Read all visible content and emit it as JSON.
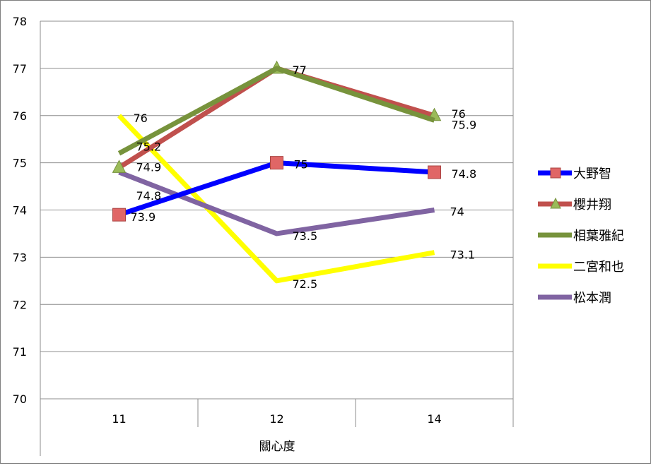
{
  "chart_data": {
    "type": "line",
    "title": "",
    "xlabel": "關心度",
    "ylabel": "",
    "categories": [
      "11",
      "12",
      "14"
    ],
    "ylim": [
      70,
      78
    ],
    "yticks": [
      70,
      71,
      72,
      73,
      74,
      75,
      76,
      77,
      78
    ],
    "grid": true,
    "legend_position": "right",
    "series": [
      {
        "name": "大野智",
        "values": [
          73.9,
          75,
          74.8
        ],
        "labels": [
          "73.9",
          "75",
          "74.8"
        ],
        "color": "#0000ff",
        "marker": "square",
        "marker_color": "#e06666"
      },
      {
        "name": "櫻井翔",
        "values": [
          74.9,
          77,
          76
        ],
        "labels": [
          "74.9",
          "77",
          "76"
        ],
        "color": "#c0504d",
        "marker": "triangle",
        "marker_color": "#9bbb59"
      },
      {
        "name": "相葉雅紀",
        "values": [
          75.2,
          77,
          75.9
        ],
        "labels": [
          "75.2",
          "77",
          "75.9"
        ],
        "color": "#77933c",
        "marker": "none"
      },
      {
        "name": "二宮和也",
        "values": [
          76,
          72.5,
          73.1
        ],
        "labels": [
          "76",
          "72.5",
          "73.1"
        ],
        "color": "#ffff00",
        "marker": "none"
      },
      {
        "name": "松本潤",
        "values": [
          74.8,
          73.5,
          74
        ],
        "labels": [
          "74.8",
          "73.5",
          "74"
        ],
        "color": "#8064a2",
        "marker": "none"
      }
    ]
  }
}
